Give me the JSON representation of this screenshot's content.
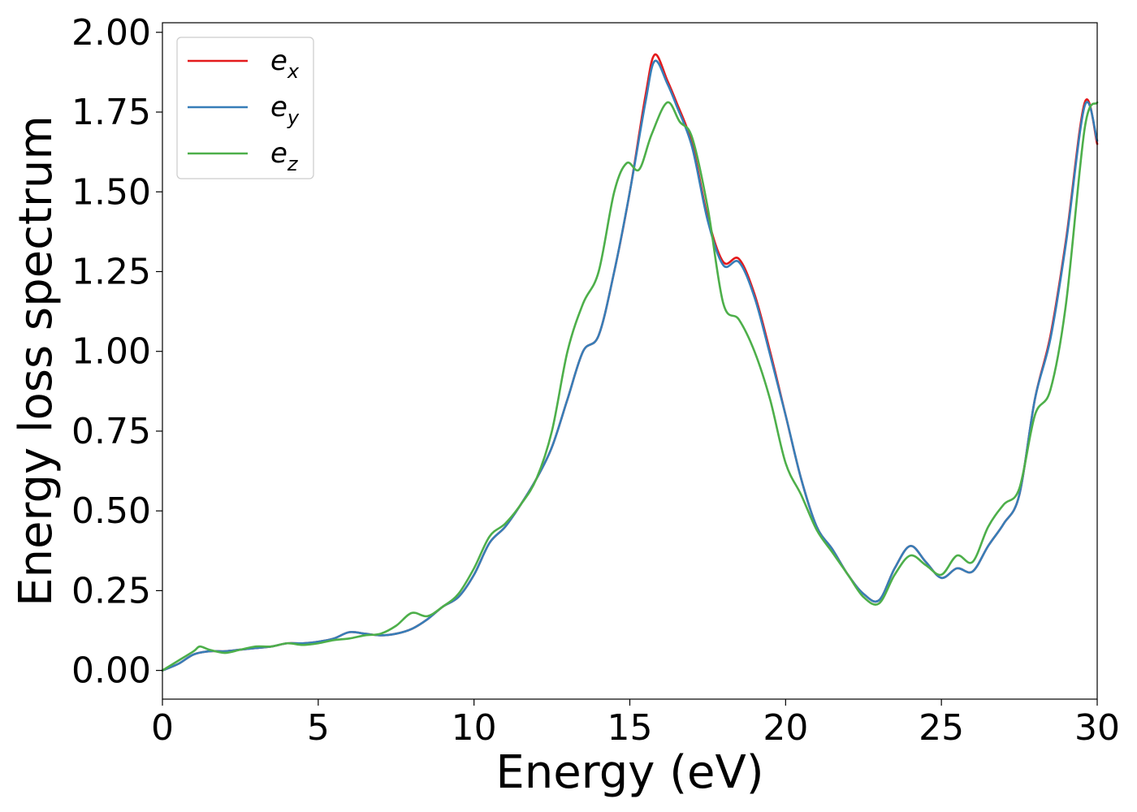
{
  "chart_data": {
    "type": "line",
    "title": "",
    "xlabel": "Energy (eV)",
    "ylabel": "Energy loss spectrum",
    "xlim": [
      0,
      30
    ],
    "ylim": [
      -0.09,
      2.03
    ],
    "xticks": [
      0,
      5,
      10,
      15,
      20,
      25,
      30
    ],
    "yticks": [
      0.0,
      0.25,
      0.5,
      0.75,
      1.0,
      1.25,
      1.5,
      1.75,
      2.0
    ],
    "xtick_labels": [
      "0",
      "5",
      "10",
      "15",
      "20",
      "25",
      "30"
    ],
    "ytick_labels": [
      "0.00",
      "0.25",
      "0.50",
      "0.75",
      "1.00",
      "1.25",
      "1.50",
      "1.75",
      "2.00"
    ],
    "grid": false,
    "legend_position": "top-left",
    "series": [
      {
        "name": "e",
        "subscript": "x",
        "color": "#e41a1c",
        "x": [
          0,
          0.5,
          1,
          1.5,
          2,
          2.5,
          3,
          3.5,
          4,
          4.5,
          5,
          5.5,
          6,
          6.5,
          7,
          7.5,
          8,
          8.5,
          9,
          9.5,
          10,
          10.5,
          11,
          11.5,
          12,
          12.5,
          13,
          13.5,
          14,
          14.5,
          15,
          15.5,
          15.8,
          16.2,
          16.5,
          17,
          17.5,
          18,
          18.5,
          19,
          19.5,
          20,
          20.5,
          21,
          21.5,
          22,
          22.5,
          23,
          23.5,
          24,
          24.5,
          25,
          25.5,
          26,
          26.5,
          27,
          27.5,
          28,
          28.5,
          29,
          29.6,
          30
        ],
        "y": [
          0.0,
          0.02,
          0.05,
          0.06,
          0.06,
          0.065,
          0.07,
          0.075,
          0.085,
          0.085,
          0.09,
          0.1,
          0.12,
          0.115,
          0.11,
          0.115,
          0.13,
          0.16,
          0.2,
          0.23,
          0.3,
          0.4,
          0.45,
          0.52,
          0.6,
          0.7,
          0.85,
          1.0,
          1.05,
          1.25,
          1.5,
          1.8,
          1.93,
          1.85,
          1.78,
          1.65,
          1.42,
          1.28,
          1.29,
          1.18,
          1.0,
          0.8,
          0.6,
          0.45,
          0.38,
          0.3,
          0.24,
          0.22,
          0.32,
          0.39,
          0.34,
          0.29,
          0.32,
          0.31,
          0.39,
          0.46,
          0.55,
          0.85,
          1.05,
          1.35,
          1.78,
          1.65
        ]
      },
      {
        "name": "e",
        "subscript": "y",
        "color": "#377eb8",
        "x": [
          0,
          0.5,
          1,
          1.5,
          2,
          2.5,
          3,
          3.5,
          4,
          4.5,
          5,
          5.5,
          6,
          6.5,
          7,
          7.5,
          8,
          8.5,
          9,
          9.5,
          10,
          10.5,
          11,
          11.5,
          12,
          12.5,
          13,
          13.5,
          14,
          14.5,
          15,
          15.5,
          15.8,
          16.2,
          16.5,
          17,
          17.5,
          18,
          18.5,
          19,
          19.5,
          20,
          20.5,
          21,
          21.5,
          22,
          22.5,
          23,
          23.5,
          24,
          24.5,
          25,
          25.5,
          26,
          26.5,
          27,
          27.5,
          28,
          28.5,
          29,
          29.6,
          30
        ],
        "y": [
          0.0,
          0.02,
          0.05,
          0.06,
          0.06,
          0.065,
          0.07,
          0.075,
          0.085,
          0.085,
          0.09,
          0.1,
          0.12,
          0.115,
          0.11,
          0.115,
          0.13,
          0.16,
          0.2,
          0.23,
          0.3,
          0.4,
          0.45,
          0.52,
          0.6,
          0.7,
          0.85,
          1.0,
          1.05,
          1.25,
          1.5,
          1.78,
          1.91,
          1.84,
          1.77,
          1.64,
          1.41,
          1.27,
          1.28,
          1.17,
          0.99,
          0.8,
          0.6,
          0.45,
          0.38,
          0.3,
          0.24,
          0.22,
          0.32,
          0.39,
          0.34,
          0.29,
          0.32,
          0.31,
          0.39,
          0.46,
          0.55,
          0.85,
          1.04,
          1.34,
          1.77,
          1.66
        ]
      },
      {
        "name": "e",
        "subscript": "z",
        "color": "#4daf4a",
        "x": [
          0,
          0.5,
          1,
          1.2,
          1.5,
          2,
          2.5,
          3,
          3.5,
          4,
          4.5,
          5,
          5.5,
          6,
          6.5,
          7,
          7.5,
          8,
          8.5,
          9,
          9.5,
          10,
          10.5,
          11,
          11.5,
          12,
          12.5,
          13,
          13.5,
          14,
          14.5,
          14.9,
          15.3,
          15.7,
          16.2,
          16.6,
          17,
          17.5,
          18,
          18.5,
          19,
          19.5,
          20,
          20.5,
          21,
          21.5,
          22,
          22.5,
          23,
          23.5,
          24,
          24.5,
          25,
          25.5,
          26,
          26.5,
          27,
          27.5,
          28,
          28.5,
          29,
          29.6,
          30
        ],
        "y": [
          0.0,
          0.03,
          0.06,
          0.075,
          0.065,
          0.055,
          0.065,
          0.075,
          0.075,
          0.085,
          0.08,
          0.085,
          0.095,
          0.1,
          0.11,
          0.115,
          0.14,
          0.18,
          0.17,
          0.2,
          0.24,
          0.32,
          0.42,
          0.46,
          0.52,
          0.6,
          0.75,
          1.0,
          1.15,
          1.25,
          1.5,
          1.59,
          1.57,
          1.68,
          1.78,
          1.72,
          1.67,
          1.45,
          1.15,
          1.1,
          1.0,
          0.85,
          0.65,
          0.55,
          0.44,
          0.37,
          0.3,
          0.23,
          0.21,
          0.3,
          0.36,
          0.33,
          0.3,
          0.36,
          0.34,
          0.45,
          0.52,
          0.57,
          0.8,
          0.88,
          1.15,
          1.7,
          1.78
        ]
      }
    ]
  }
}
